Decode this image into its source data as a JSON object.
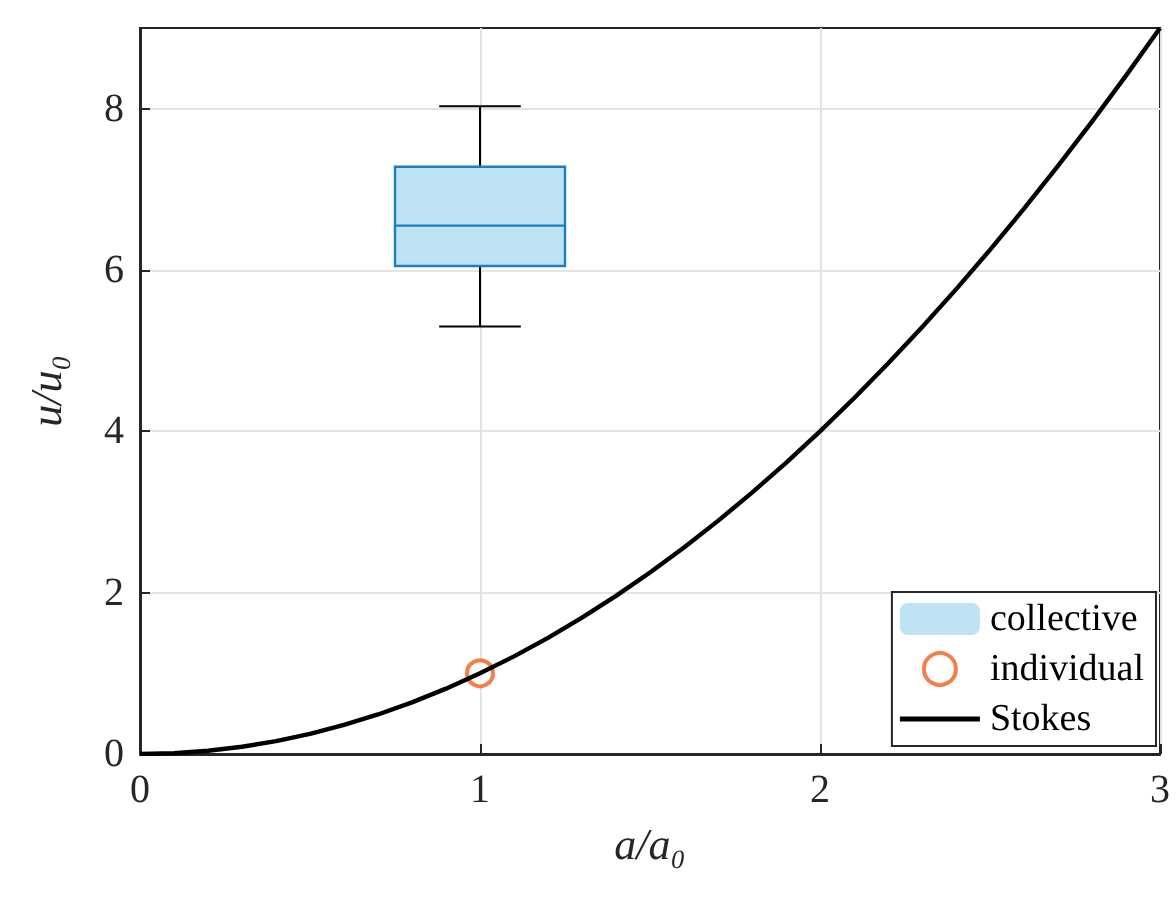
{
  "chart_data": {
    "type": "line",
    "xlabel": "a/a₀",
    "ylabel": "u/u₀",
    "xlim": [
      0,
      3
    ],
    "xticks": [
      0,
      1,
      2,
      3
    ],
    "ylim": [
      0,
      9
    ],
    "yticks": [
      0,
      2,
      4,
      6,
      8
    ],
    "grid": true,
    "legend": "bottom right",
    "series": [
      {
        "type": "box",
        "name": "collective",
        "color": "#bde3f4",
        "x": [
          1
        ],
        "boxes": [
          {
            "low": 5.3,
            "q1": 6.05,
            "median": 6.55,
            "q3": 7.28,
            "high": 8.03
          }
        ]
      },
      {
        "type": "scatter",
        "name": "individual",
        "color": "#f25c1c",
        "marker": "circle",
        "x": [
          1
        ],
        "values": [
          1
        ]
      },
      {
        "name": "Stokes",
        "color": "#000000",
        "marker": "none",
        "x": [
          0,
          0.1,
          0.2,
          0.3,
          0.4,
          0.5,
          0.6,
          0.7,
          0.8,
          0.9,
          1,
          1.1,
          1.2,
          1.3,
          1.4,
          1.5,
          1.6,
          1.7,
          1.8,
          1.9,
          2,
          2.1,
          2.2,
          2.3,
          2.4,
          2.5,
          2.6,
          2.7,
          2.8,
          2.9,
          3
        ],
        "values": [
          0,
          0.01,
          0.04,
          0.09,
          0.16,
          0.25,
          0.36,
          0.49,
          0.64,
          0.81,
          1,
          1.21,
          1.44,
          1.69,
          1.96,
          2.25,
          2.56,
          2.89,
          3.24,
          3.61,
          4,
          4.41,
          4.84,
          5.29,
          5.76,
          6.25,
          6.76,
          7.29,
          7.84,
          8.41,
          9
        ]
      }
    ]
  }
}
